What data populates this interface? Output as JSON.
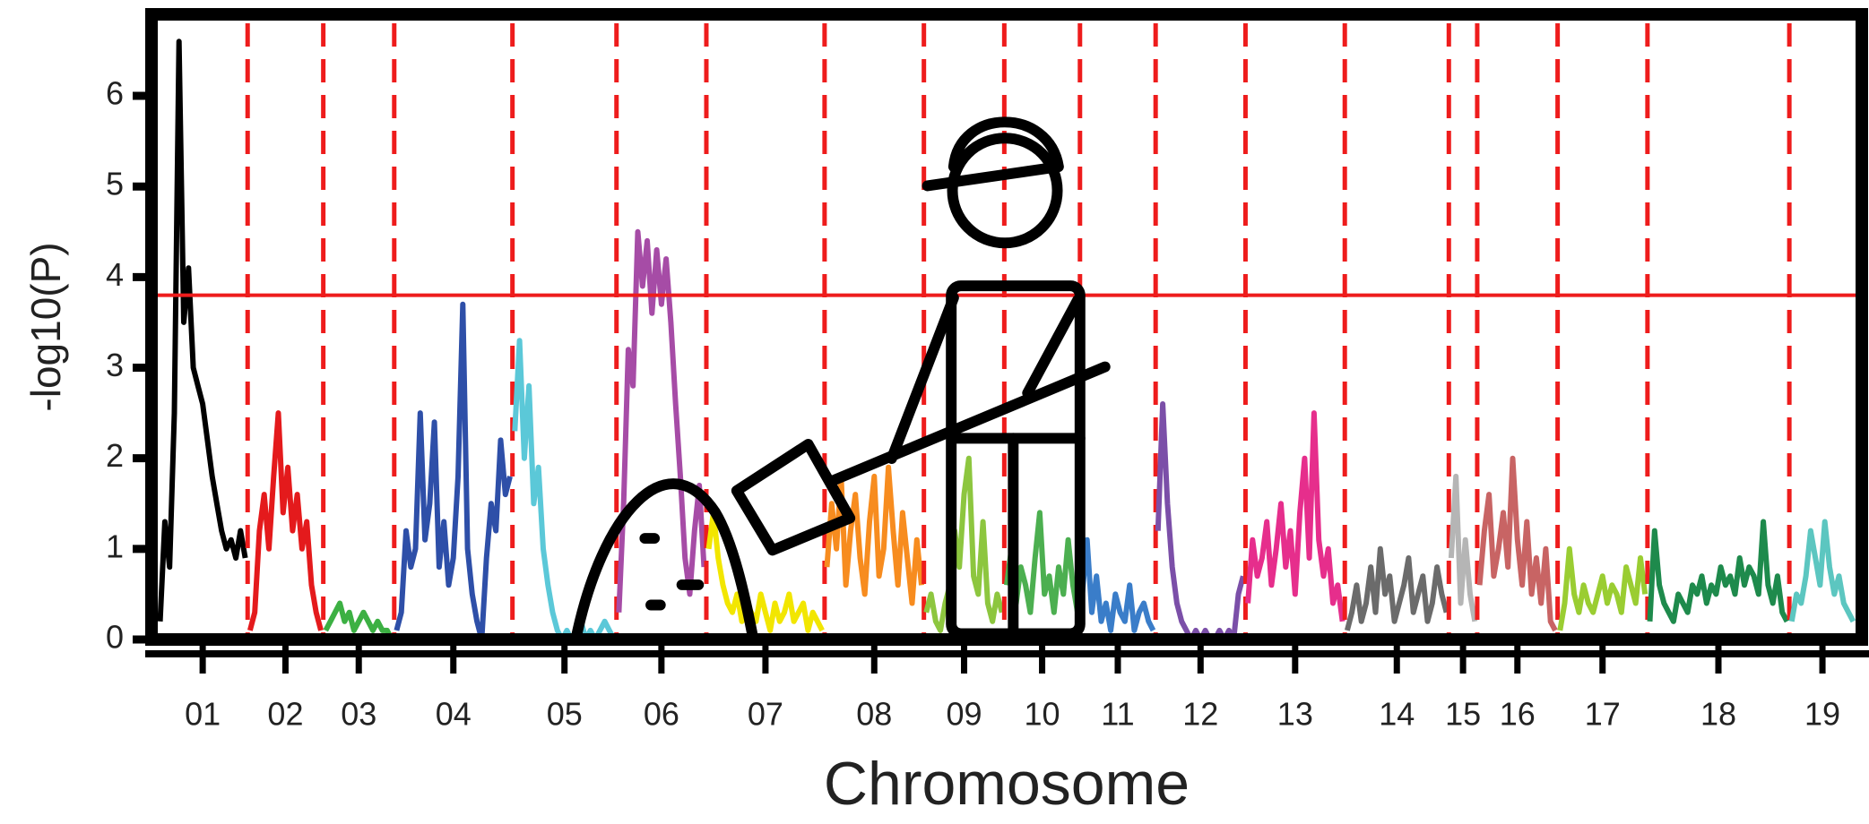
{
  "chart_data": {
    "type": "line",
    "x_label": "Chromosome",
    "y_label": "-log10(P)",
    "ylim": [
      0,
      6.9
    ],
    "yticks": [
      0,
      1,
      2,
      3,
      4,
      5,
      6
    ],
    "threshold": 3.8,
    "threshold_color": "#ee1c1c",
    "boundary_color": "#ee1c1c",
    "series": [
      {
        "name": "01",
        "color": "#000000",
        "values": [
          0.2,
          1.3,
          0.8,
          2.5,
          6.6,
          3.5,
          4.1,
          3.0,
          2.8,
          2.6,
          2.2,
          1.8,
          1.5,
          1.2,
          1.0,
          1.1,
          0.9,
          1.2,
          0.9
        ]
      },
      {
        "name": "02",
        "color": "#e41a1c",
        "values": [
          0.1,
          0.3,
          1.2,
          1.6,
          1.0,
          1.8,
          2.5,
          1.4,
          1.9,
          1.2,
          1.6,
          1.0,
          1.3,
          0.6,
          0.3,
          0.1
        ]
      },
      {
        "name": "03",
        "color": "#3cb043",
        "values": [
          0.1,
          0.2,
          0.3,
          0.4,
          0.2,
          0.3,
          0.1,
          0.2,
          0.3,
          0.2,
          0.1,
          0.2,
          0.1,
          0.1,
          0.0
        ]
      },
      {
        "name": "04",
        "color": "#2e4fa8",
        "values": [
          0.1,
          0.3,
          1.2,
          0.8,
          1.0,
          2.5,
          1.1,
          1.5,
          2.4,
          0.8,
          1.3,
          0.6,
          0.9,
          1.8,
          3.7,
          1.0,
          0.5,
          0.2,
          0.0,
          0.9,
          1.5,
          1.2,
          2.2,
          1.6,
          1.8
        ]
      },
      {
        "name": "05",
        "color": "#5bc8d8",
        "values": [
          2.3,
          3.3,
          2.0,
          2.8,
          1.5,
          1.9,
          1.0,
          0.6,
          0.3,
          0.1,
          0.0,
          0.1,
          0.0,
          0.1,
          0.2,
          0.0,
          0.1,
          0.0,
          0.1,
          0.2,
          0.1,
          0.0
        ]
      },
      {
        "name": "06",
        "color": "#a64ca6",
        "values": [
          0.3,
          1.5,
          3.2,
          2.8,
          4.5,
          3.9,
          4.4,
          3.6,
          4.3,
          3.7,
          4.2,
          3.5,
          2.6,
          1.8,
          0.9,
          0.5,
          1.2,
          1.7,
          0.8
        ]
      },
      {
        "name": "07",
        "color": "#f2e600",
        "values": [
          1.0,
          1.4,
          0.9,
          0.6,
          0.4,
          0.3,
          0.5,
          0.2,
          0.4,
          0.3,
          0.2,
          0.5,
          0.3,
          0.1,
          0.4,
          0.2,
          0.3,
          0.5,
          0.2,
          0.3,
          0.4,
          0.1,
          0.3,
          0.2,
          0.1
        ]
      },
      {
        "name": "08",
        "color": "#f78c1f",
        "values": [
          0.8,
          1.5,
          1.0,
          1.8,
          0.6,
          1.2,
          1.6,
          0.9,
          0.5,
          1.3,
          1.8,
          0.7,
          1.0,
          1.9,
          1.2,
          0.6,
          1.4,
          0.9,
          0.4,
          1.1,
          0.6
        ]
      },
      {
        "name": "09",
        "color": "#8dc63f",
        "values": [
          0.3,
          0.5,
          0.2,
          0.1,
          0.4,
          0.6,
          1.2,
          0.8,
          1.6,
          2.0,
          0.7,
          0.5,
          1.3,
          0.4,
          0.2,
          0.5,
          0.3
        ]
      },
      {
        "name": "10",
        "color": "#4caf50",
        "values": [
          0.6,
          1.0,
          0.4,
          0.8,
          0.6,
          0.3,
          0.9,
          1.4,
          0.5,
          0.7,
          0.3,
          0.8,
          0.5,
          1.1,
          0.6,
          0.3
        ]
      },
      {
        "name": "11",
        "color": "#3a7dc9",
        "values": [
          0.5,
          1.1,
          0.3,
          0.7,
          0.2,
          0.4,
          0.1,
          0.5,
          0.3,
          0.2,
          0.6,
          0.1,
          0.3,
          0.4,
          0.2,
          0.1
        ]
      },
      {
        "name": "12",
        "color": "#7b4fa8",
        "values": [
          1.2,
          2.6,
          1.5,
          0.8,
          0.4,
          0.2,
          0.1,
          0.0,
          0.1,
          0.0,
          0.1,
          0.0,
          0.0,
          0.1,
          0.0,
          0.1,
          0.0,
          0.5,
          0.7
        ]
      },
      {
        "name": "13",
        "color": "#e62e8c",
        "values": [
          0.4,
          1.1,
          0.7,
          0.9,
          1.3,
          0.6,
          1.0,
          1.5,
          0.8,
          1.2,
          0.5,
          1.4,
          2.0,
          0.9,
          2.5,
          1.1,
          0.7,
          1.0,
          0.4,
          0.6,
          0.2
        ]
      },
      {
        "name": "14",
        "color": "#6b6b6b",
        "values": [
          0.1,
          0.3,
          0.6,
          0.2,
          0.4,
          0.8,
          0.3,
          1.0,
          0.5,
          0.7,
          0.2,
          0.4,
          0.6,
          0.9,
          0.3,
          0.5,
          0.7,
          0.2,
          0.4,
          0.8,
          0.5,
          0.3
        ]
      },
      {
        "name": "15",
        "color": "#b5b5b5",
        "values": [
          0.9,
          1.8,
          0.4,
          1.1,
          0.5,
          0.2
        ]
      },
      {
        "name": "16",
        "color": "#c86464",
        "values": [
          0.6,
          1.2,
          1.6,
          0.7,
          1.0,
          1.4,
          0.8,
          2.0,
          1.1,
          0.6,
          1.3,
          0.5,
          0.9,
          0.4,
          1.0,
          0.2,
          0.1
        ]
      },
      {
        "name": "17",
        "color": "#9acd32",
        "values": [
          0.1,
          0.4,
          1.0,
          0.5,
          0.3,
          0.6,
          0.4,
          0.3,
          0.5,
          0.7,
          0.4,
          0.6,
          0.5,
          0.3,
          0.8,
          0.6,
          0.4,
          0.9,
          0.5
        ]
      },
      {
        "name": "18",
        "color": "#1e8a4c",
        "values": [
          0.2,
          1.2,
          0.6,
          0.4,
          0.3,
          0.2,
          0.5,
          0.4,
          0.3,
          0.6,
          0.5,
          0.7,
          0.4,
          0.6,
          0.5,
          0.8,
          0.6,
          0.7,
          0.5,
          0.9,
          0.6,
          0.8,
          0.7,
          0.5,
          1.3,
          0.6,
          0.4,
          0.7,
          0.3,
          0.2
        ]
      },
      {
        "name": "19",
        "color": "#5cc6c0",
        "values": [
          0.2,
          0.5,
          0.4,
          0.7,
          1.2,
          0.9,
          0.6,
          1.3,
          0.8,
          0.5,
          0.7,
          0.4,
          0.3,
          0.2
        ]
      }
    ]
  }
}
